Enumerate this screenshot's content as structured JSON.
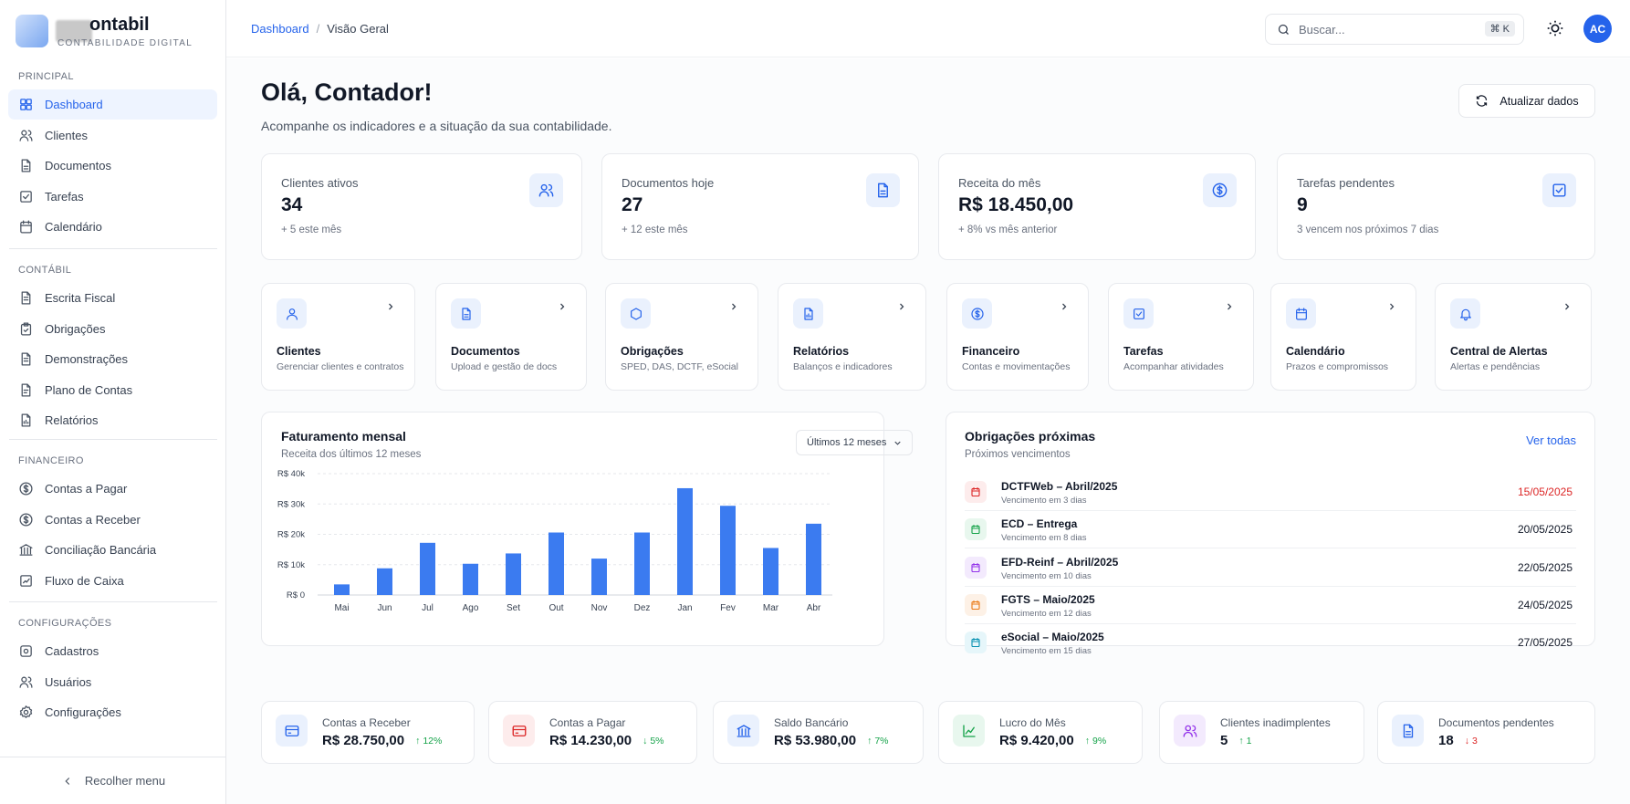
{
  "brand": {
    "name": "ontabil",
    "subtitle": "CONTABILIDADE DIGITAL"
  },
  "sidebar": {
    "sections": [
      {
        "title": "PRINCIPAL",
        "items": [
          {
            "label": "Dashboard",
            "icon": "grid-icon",
            "active": true
          },
          {
            "label": "Clientes",
            "icon": "users-icon"
          },
          {
            "label": "Documentos",
            "icon": "file-icon"
          },
          {
            "label": "Tarefas",
            "icon": "check-square-icon"
          },
          {
            "label": "Calendário",
            "icon": "calendar-icon"
          }
        ]
      },
      {
        "title": "CONTÁBIL",
        "items": [
          {
            "label": "Escrita Fiscal",
            "icon": "file-text-icon"
          },
          {
            "label": "Obrigações",
            "icon": "clipboard-check-icon"
          },
          {
            "label": "Demonstrações",
            "icon": "file-text-icon"
          },
          {
            "label": "Plano de Contas",
            "icon": "list-icon"
          },
          {
            "label": "Relatórios",
            "icon": "report-icon"
          }
        ]
      },
      {
        "title": "FINANCEIRO",
        "items": [
          {
            "label": "Contas a Pagar",
            "icon": "dollar-icon"
          },
          {
            "label": "Contas a Receber",
            "icon": "dollar-icon"
          },
          {
            "label": "Conciliação Bancária",
            "icon": "bank-icon"
          },
          {
            "label": "Fluxo de Caixa",
            "icon": "trend-icon"
          }
        ]
      },
      {
        "title": "CONFIGURAÇÕES",
        "items": [
          {
            "label": "Cadastros",
            "icon": "database-icon"
          },
          {
            "label": "Usuários",
            "icon": "users-icon"
          },
          {
            "label": "Configurações",
            "icon": "gear-icon"
          }
        ]
      }
    ],
    "collapse_label": "Recolher menu"
  },
  "topbar": {
    "breadcrumb": {
      "root": "Dashboard",
      "sep": "/",
      "current": "Visão Geral"
    },
    "search": {
      "placeholder": "Buscar...",
      "shortcut": "⌘ K"
    },
    "avatar": "AC"
  },
  "header": {
    "title": "Olá, Contador!",
    "subtitle": "Acompanhe os indicadores e a situação da sua contabilidade.",
    "refresh_label": "Atualizar dados"
  },
  "stats": [
    {
      "label": "Clientes ativos",
      "value": "34",
      "note": "+ 5 este mês",
      "icon": "users-icon"
    },
    {
      "label": "Documentos hoje",
      "value": "27",
      "note": "+ 12 este mês",
      "icon": "file-icon"
    },
    {
      "label": "Receita do mês",
      "value": "R$ 18.450,00",
      "note": "+ 8% vs mês anterior",
      "icon": "dollar-icon"
    },
    {
      "label": "Tarefas pendentes",
      "value": "9",
      "note": "3 vencem nos próximos 7 dias",
      "icon": "check-square-icon"
    }
  ],
  "quick_actions": [
    {
      "title": "Clientes",
      "desc": "Gerenciar clientes e contratos",
      "icon": "user-icon"
    },
    {
      "title": "Documentos",
      "desc": "Upload e gestão de docs",
      "icon": "file-icon"
    },
    {
      "title": "Obrigações",
      "desc": "SPED, DAS, DCTF, eSocial",
      "icon": "shield-icon"
    },
    {
      "title": "Relatórios",
      "desc": "Balanços e indicadores",
      "icon": "report-icon"
    },
    {
      "title": "Financeiro",
      "desc": "Contas e movimentações",
      "icon": "dollar-icon"
    },
    {
      "title": "Tarefas",
      "desc": "Acompanhar atividades",
      "icon": "check-square-icon"
    },
    {
      "title": "Calendário",
      "desc": "Prazos e compromissos",
      "icon": "calendar-icon"
    },
    {
      "title": "Central de Alertas",
      "desc": "Alertas e pendências",
      "icon": "bell-icon"
    }
  ],
  "chart_panel": {
    "title": "Faturamento mensal",
    "subtitle": "Receita dos últimos 12 meses",
    "range_select": "Últimos 12 meses"
  },
  "chart_data": {
    "type": "bar",
    "title": "Faturamento mensal",
    "subtitle": "Receita dos últimos 12 meses",
    "categories": [
      "Mai",
      "Jun",
      "Jul",
      "Ago",
      "Set",
      "Out",
      "Nov",
      "Dez",
      "Jan",
      "Fev",
      "Mar",
      "Abr"
    ],
    "values": [
      3500,
      8800,
      17200,
      10300,
      13700,
      20600,
      12000,
      20600,
      35200,
      29400,
      15500,
      23500
    ],
    "ylim": [
      0,
      40000
    ],
    "yticks": [
      0,
      10000,
      20000,
      30000,
      40000
    ],
    "ytick_labels": [
      "R$ 0",
      "R$ 10k",
      "R$ 20k",
      "R$ 30k",
      "R$ 40k"
    ],
    "grid": true,
    "color": "#3b7bf0"
  },
  "obligations": {
    "title": "Obrigações próximas",
    "subtitle": "Próximos vencimentos",
    "link": "Ver todas",
    "items": [
      {
        "name": "DCTFWeb – Abril/2025",
        "due": "Vencimento em 3 dias",
        "date": "15/05/2025",
        "color": "#dc2626",
        "bg": "#fdecec",
        "urgent": true
      },
      {
        "name": "ECD – Entrega",
        "due": "Vencimento em 8 dias",
        "date": "20/05/2025",
        "color": "#16a34a",
        "bg": "#e8f7ee"
      },
      {
        "name": "EFD-Reinf – Abril/2025",
        "due": "Vencimento em 10 dias",
        "date": "22/05/2025",
        "color": "#9333ea",
        "bg": "#f3eafd"
      },
      {
        "name": "FGTS – Maio/2025",
        "due": "Vencimento em 12 dias",
        "date": "24/05/2025",
        "color": "#ea7a17",
        "bg": "#fdf1e6"
      },
      {
        "name": "eSocial – Maio/2025",
        "due": "Vencimento em 15 dias",
        "date": "27/05/2025",
        "color": "#0891b2",
        "bg": "#e6f6fa"
      }
    ]
  },
  "finance": [
    {
      "label": "Contas a Receber",
      "value": "R$ 28.750,00",
      "delta": "12%",
      "dir": "up",
      "icon": "credit-card-icon",
      "color": "#2563eb",
      "bg": "#eaf1fd"
    },
    {
      "label": "Contas a Pagar",
      "value": "R$ 14.230,00",
      "delta": "5%",
      "dir": "down-green",
      "icon": "credit-card-icon",
      "color": "#dc2626",
      "bg": "#fdecec"
    },
    {
      "label": "Saldo Bancário",
      "value": "R$ 53.980,00",
      "delta": "7%",
      "dir": "up",
      "icon": "bank-icon",
      "color": "#2563eb",
      "bg": "#eaf1fd"
    },
    {
      "label": "Lucro do Mês",
      "value": "R$ 9.420,00",
      "delta": "9%",
      "dir": "up",
      "icon": "chart-icon",
      "color": "#16a34a",
      "bg": "#e8f7ee"
    },
    {
      "label": "Clientes inadimplentes",
      "value": "5",
      "delta": "1",
      "dir": "up",
      "icon": "users-icon",
      "color": "#9333ea",
      "bg": "#f3eafd"
    },
    {
      "label": "Documentos pendentes",
      "value": "18",
      "delta": "3",
      "dir": "down",
      "icon": "file-icon",
      "color": "#2563eb",
      "bg": "#eaf1fd"
    }
  ]
}
